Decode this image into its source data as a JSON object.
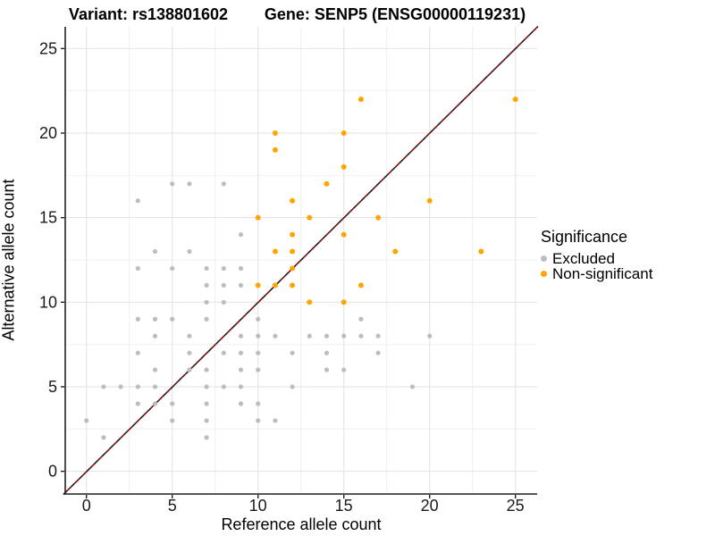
{
  "chart_data": {
    "type": "scatter",
    "title_left": "Variant: rs138801602",
    "title_right": "Gene: SENP5 (ENSG00000119231)",
    "xlabel": "Reference allele count",
    "ylabel": "Alternative allele count",
    "x_ticks": [
      0,
      5,
      10,
      15,
      20,
      25
    ],
    "y_ticks": [
      0,
      5,
      10,
      15,
      20,
      25
    ],
    "minor_ticks": [
      2.5,
      7.5,
      12.5,
      17.5,
      22.5
    ],
    "xlim": [
      -1.25,
      26.3
    ],
    "ylim": [
      -1.35,
      26.3
    ],
    "grid": "on",
    "identity_line": {
      "slope": 1,
      "intercept": 0,
      "style": "dashed",
      "colors": [
        "#1a1a1a",
        "#8B0000"
      ]
    },
    "legend": {
      "title": "Significance",
      "position": "right",
      "entries": [
        {
          "label": "Excluded",
          "color": "#bdbdbd"
        },
        {
          "label": "Non-significant",
          "color": "#FFA500"
        }
      ]
    },
    "series": [
      {
        "name": "Excluded",
        "color": "#bdbdbd",
        "points": [
          [
            0,
            3
          ],
          [
            1,
            2
          ],
          [
            1,
            5
          ],
          [
            2,
            5
          ],
          [
            3,
            4
          ],
          [
            3,
            5
          ],
          [
            3,
            7
          ],
          [
            3,
            9
          ],
          [
            3,
            12
          ],
          [
            3,
            16
          ],
          [
            4,
            4
          ],
          [
            4,
            5
          ],
          [
            4,
            6
          ],
          [
            4,
            8
          ],
          [
            4,
            9
          ],
          [
            4,
            13
          ],
          [
            5,
            3
          ],
          [
            5,
            4
          ],
          [
            5,
            9
          ],
          [
            5,
            12
          ],
          [
            5,
            17
          ],
          [
            6,
            6
          ],
          [
            6,
            7
          ],
          [
            6,
            8
          ],
          [
            6,
            13
          ],
          [
            6,
            17
          ],
          [
            7,
            2
          ],
          [
            7,
            3
          ],
          [
            7,
            4
          ],
          [
            7,
            5
          ],
          [
            7,
            6
          ],
          [
            7,
            9
          ],
          [
            7,
            10
          ],
          [
            7,
            11
          ],
          [
            7,
            12
          ],
          [
            8,
            5
          ],
          [
            8,
            7
          ],
          [
            8,
            10
          ],
          [
            8,
            11
          ],
          [
            8,
            12
          ],
          [
            8,
            17
          ],
          [
            9,
            4
          ],
          [
            9,
            5
          ],
          [
            9,
            6
          ],
          [
            9,
            7
          ],
          [
            9,
            8
          ],
          [
            9,
            11
          ],
          [
            9,
            12
          ],
          [
            9,
            14
          ],
          [
            10,
            3
          ],
          [
            10,
            4
          ],
          [
            10,
            6
          ],
          [
            10,
            7
          ],
          [
            10,
            8
          ],
          [
            10,
            9
          ],
          [
            11,
            3
          ],
          [
            11,
            8
          ],
          [
            12,
            5
          ],
          [
            12,
            7
          ],
          [
            13,
            8
          ],
          [
            14,
            6
          ],
          [
            14,
            7
          ],
          [
            14,
            8
          ],
          [
            15,
            6
          ],
          [
            15,
            8
          ],
          [
            16,
            8
          ],
          [
            16,
            9
          ],
          [
            17,
            7
          ],
          [
            17,
            8
          ],
          [
            19,
            5
          ],
          [
            20,
            8
          ]
        ]
      },
      {
        "name": "Non-significant",
        "color": "#FFA500",
        "points": [
          [
            10,
            11
          ],
          [
            10,
            15
          ],
          [
            11,
            11
          ],
          [
            11,
            13
          ],
          [
            11,
            19
          ],
          [
            11,
            20
          ],
          [
            12,
            11
          ],
          [
            12,
            12
          ],
          [
            12,
            13
          ],
          [
            12,
            14
          ],
          [
            12,
            16
          ],
          [
            13,
            10
          ],
          [
            13,
            15
          ],
          [
            14,
            17
          ],
          [
            15,
            10
          ],
          [
            15,
            14
          ],
          [
            15,
            18
          ],
          [
            15,
            20
          ],
          [
            16,
            11
          ],
          [
            16,
            22
          ],
          [
            17,
            15
          ],
          [
            18,
            13
          ],
          [
            20,
            16
          ],
          [
            23,
            13
          ],
          [
            25,
            22
          ]
        ]
      }
    ]
  }
}
